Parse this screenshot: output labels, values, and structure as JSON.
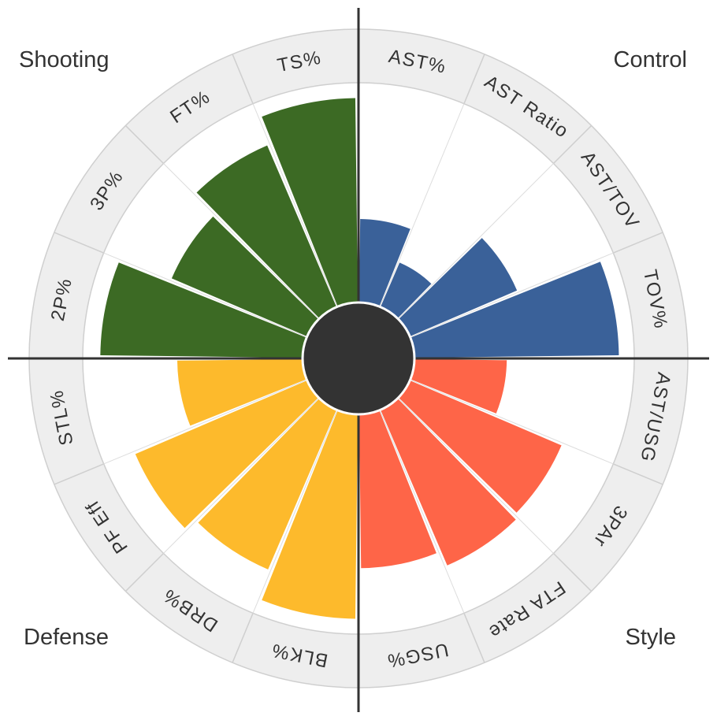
{
  "chart_data": {
    "type": "polar-bar",
    "scale": {
      "min": 0,
      "max": 100
    },
    "groups": [
      {
        "name": "Control",
        "color": "#3a6199"
      },
      {
        "name": "Style",
        "color": "#fe6548"
      },
      {
        "name": "Defense",
        "color": "#fdba2c"
      },
      {
        "name": "Shooting",
        "color": "#3c6a24"
      }
    ],
    "categories": [
      "AST%",
      "AST Ratio",
      "AST/TOV",
      "TOV%",
      "AST/USG",
      "3PAr",
      "FTA Rate",
      "USG%",
      "BLK%",
      "DRB%",
      "PF Eff",
      "STL%",
      "2P%",
      "3P%",
      "FT%",
      "TS%"
    ],
    "values": [
      38,
      22,
      53,
      93,
      42,
      75,
      77,
      70,
      93,
      79,
      85,
      57,
      92,
      67,
      80,
      93
    ],
    "category_group": [
      "Control",
      "Control",
      "Control",
      "Control",
      "Style",
      "Style",
      "Style",
      "Style",
      "Defense",
      "Defense",
      "Defense",
      "Defense",
      "Shooting",
      "Shooting",
      "Shooting",
      "Shooting"
    ],
    "corner_labels": {
      "top_left": "Shooting",
      "top_right": "Control",
      "bottom_left": "Defense",
      "bottom_right": "Style"
    },
    "colors": {
      "ring": "#eeeeee",
      "ring_border": "#cfcfcf",
      "center": "#333333",
      "axis": "#333333"
    }
  }
}
